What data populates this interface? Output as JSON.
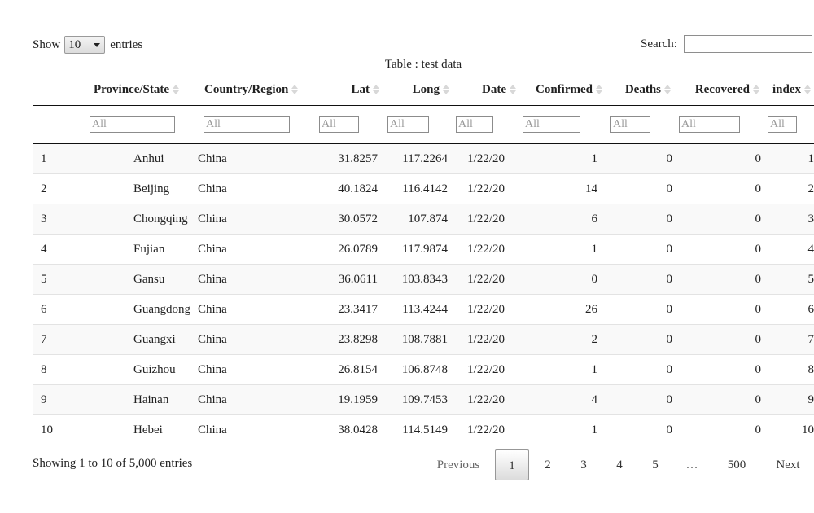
{
  "length": {
    "show": "Show",
    "value": "10",
    "entries": "entries"
  },
  "search": {
    "label": "Search:",
    "value": ""
  },
  "caption": "Table : test data",
  "columns": [
    "",
    "Province/State",
    "Country/Region",
    "Lat",
    "Long",
    "Date",
    "Confirmed",
    "Deaths",
    "Recovered",
    "index"
  ],
  "filter_placeholder": "All",
  "rows": [
    [
      "1",
      "Anhui",
      "China",
      "31.8257",
      "117.2264",
      "1/22/20",
      "1",
      "0",
      "0",
      "1"
    ],
    [
      "2",
      "Beijing",
      "China",
      "40.1824",
      "116.4142",
      "1/22/20",
      "14",
      "0",
      "0",
      "2"
    ],
    [
      "3",
      "Chongqing",
      "China",
      "30.0572",
      "107.874",
      "1/22/20",
      "6",
      "0",
      "0",
      "3"
    ],
    [
      "4",
      "Fujian",
      "China",
      "26.0789",
      "117.9874",
      "1/22/20",
      "1",
      "0",
      "0",
      "4"
    ],
    [
      "5",
      "Gansu",
      "China",
      "36.0611",
      "103.8343",
      "1/22/20",
      "0",
      "0",
      "0",
      "5"
    ],
    [
      "6",
      "Guangdong",
      "China",
      "23.3417",
      "113.4244",
      "1/22/20",
      "26",
      "0",
      "0",
      "6"
    ],
    [
      "7",
      "Guangxi",
      "China",
      "23.8298",
      "108.7881",
      "1/22/20",
      "2",
      "0",
      "0",
      "7"
    ],
    [
      "8",
      "Guizhou",
      "China",
      "26.8154",
      "106.8748",
      "1/22/20",
      "1",
      "0",
      "0",
      "8"
    ],
    [
      "9",
      "Hainan",
      "China",
      "19.1959",
      "109.7453",
      "1/22/20",
      "4",
      "0",
      "0",
      "9"
    ],
    [
      "10",
      "Hebei",
      "China",
      "38.0428",
      "114.5149",
      "1/22/20",
      "1",
      "0",
      "0",
      "10"
    ]
  ],
  "info": "Showing 1 to 10 of 5,000 entries",
  "pagination": {
    "previous": "Previous",
    "pages": [
      "1",
      "2",
      "3",
      "4",
      "5",
      "…",
      "500"
    ],
    "next": "Next",
    "current": "1"
  }
}
